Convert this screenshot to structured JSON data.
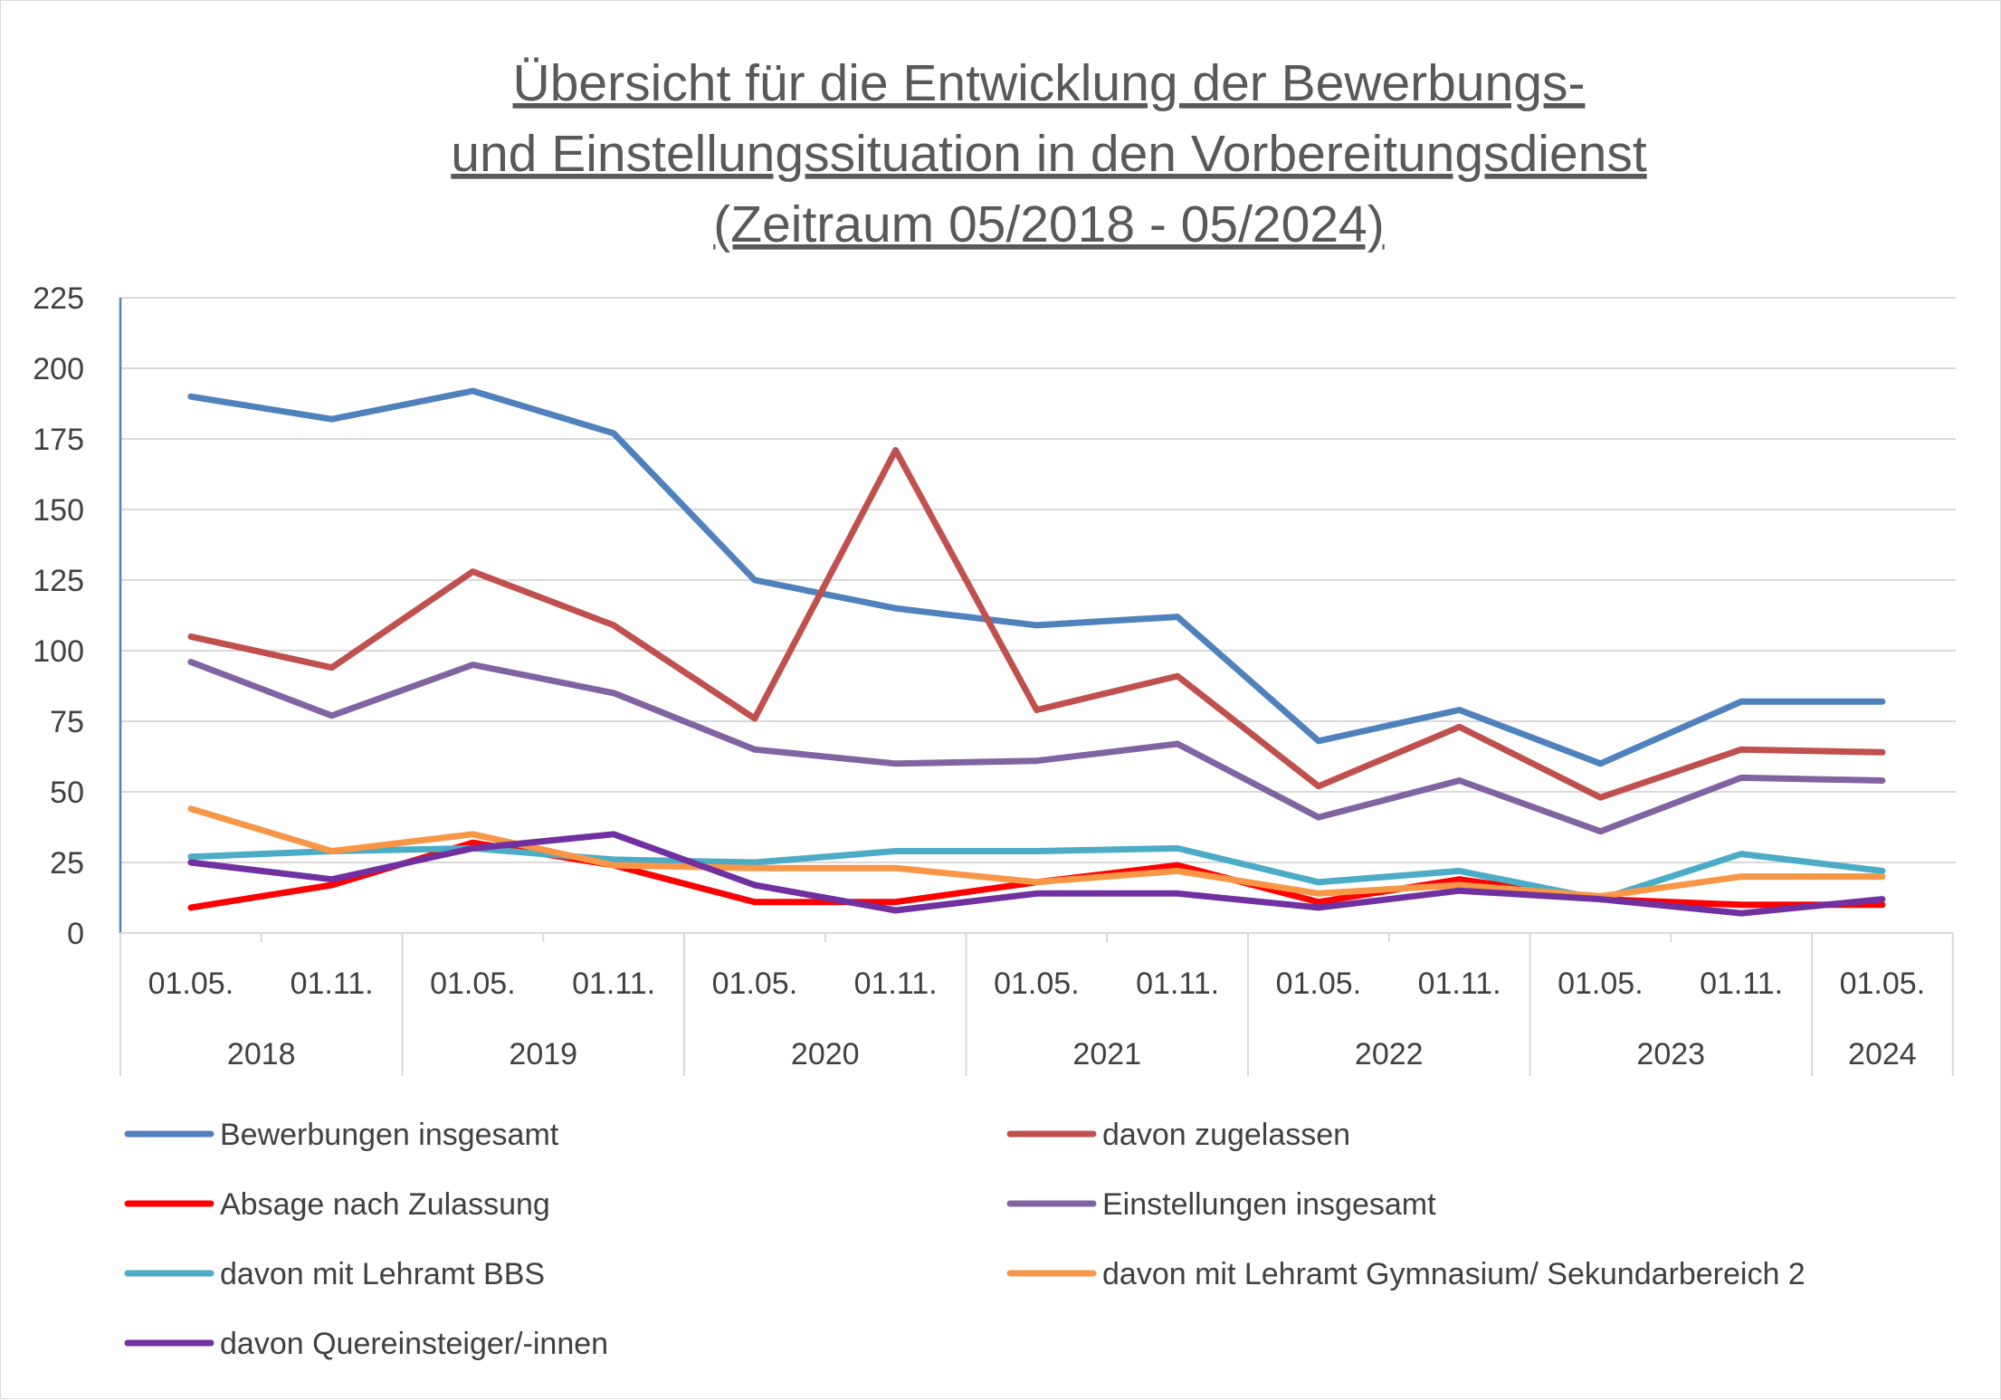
{
  "chart_data": {
    "type": "line",
    "title_lines": [
      "Übersicht für die Entwicklung der Bewerbungs-",
      "und Einstellungssituation in den Vorbereitungsdienst",
      "(Zeitraum 05/2018 - 05/2024)"
    ],
    "x": [
      "01.05.",
      "01.11.",
      "01.05.",
      "01.11.",
      "01.05.",
      "01.11.",
      "01.05.",
      "01.11.",
      "01.05.",
      "01.11.",
      "01.05.",
      "01.11.",
      "01.05."
    ],
    "year_groups": [
      {
        "label": "2018",
        "span": 2
      },
      {
        "label": "2019",
        "span": 2
      },
      {
        "label": "2020",
        "span": 2
      },
      {
        "label": "2021",
        "span": 2
      },
      {
        "label": "2022",
        "span": 2
      },
      {
        "label": "2023",
        "span": 2
      },
      {
        "label": "2024",
        "span": 1
      }
    ],
    "ylim": [
      0,
      225
    ],
    "yticks": [
      0,
      25,
      50,
      75,
      100,
      125,
      150,
      175,
      200,
      225
    ],
    "grid": true,
    "legend_position": "bottom",
    "series": [
      {
        "name": "Bewerbungen insgesamt",
        "color": "#4f81bd",
        "values": [
          190,
          182,
          192,
          177,
          125,
          115,
          109,
          112,
          68,
          79,
          60,
          82,
          82
        ]
      },
      {
        "name": "davon zugelassen",
        "color": "#c0504d",
        "values": [
          105,
          94,
          128,
          109,
          76,
          171,
          79,
          91,
          52,
          73,
          48,
          65,
          64
        ]
      },
      {
        "name": "Absage nach Zulassung",
        "color": "#ff0000",
        "values": [
          9,
          17,
          32,
          24,
          11,
          11,
          18,
          24,
          11,
          19,
          12,
          10,
          10
        ]
      },
      {
        "name": "Einstellungen insgesamt",
        "color": "#8064a2",
        "values": [
          96,
          77,
          95,
          85,
          65,
          60,
          61,
          67,
          41,
          54,
          36,
          55,
          54
        ]
      },
      {
        "name": "davon mit Lehramt BBS",
        "color": "#4bacc6",
        "values": [
          27,
          29,
          30,
          26,
          25,
          29,
          29,
          30,
          18,
          22,
          12,
          28,
          22
        ]
      },
      {
        "name": "davon mit Lehramt Gymnasium/ Sekundarbereich 2",
        "color": "#f79646",
        "values": [
          44,
          29,
          35,
          24,
          23,
          23,
          18,
          22,
          14,
          17,
          13,
          20,
          20
        ]
      },
      {
        "name": "davon Quereinsteiger/-innen",
        "color": "#7030a0",
        "values": [
          25,
          19,
          30,
          35,
          17,
          8,
          14,
          14,
          9,
          15,
          12,
          7,
          12
        ]
      }
    ]
  }
}
